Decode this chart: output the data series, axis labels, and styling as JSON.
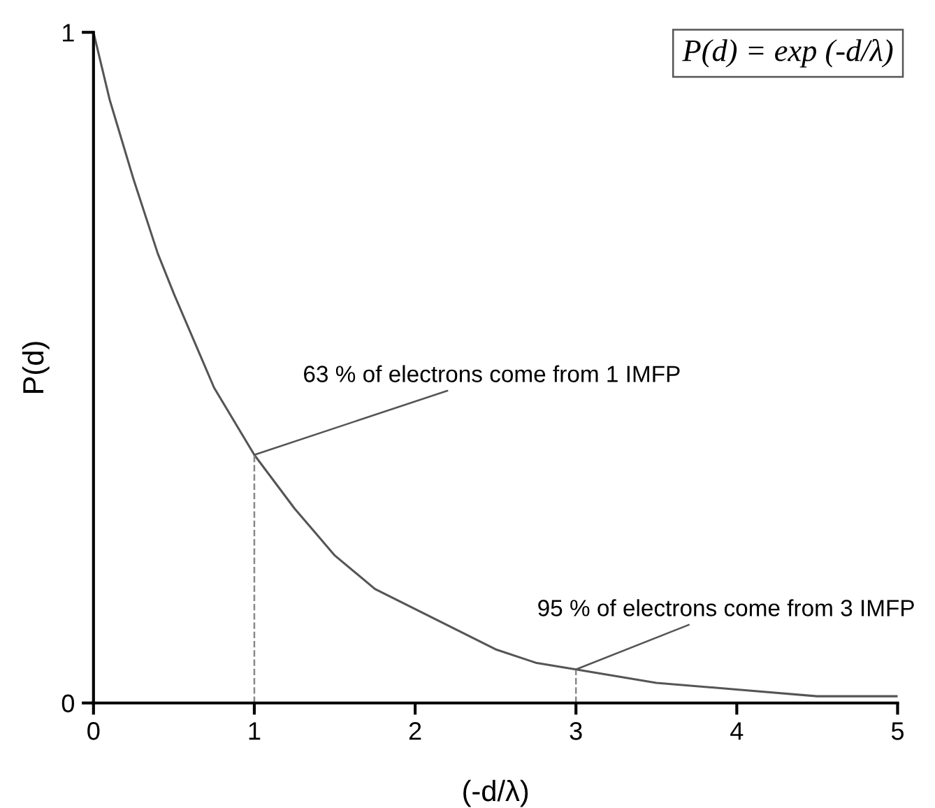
{
  "chart_data": {
    "type": "line",
    "xlabel": "(-d/λ)",
    "ylabel": "P(d)",
    "xlim": [
      0,
      5
    ],
    "ylim": [
      0,
      1
    ],
    "xticks": [
      0,
      1,
      2,
      3,
      4,
      5
    ],
    "yticks": [
      0,
      1
    ],
    "grid": false,
    "legend": false,
    "marker": "none",
    "series": [
      {
        "color": "#555555",
        "line_style": "solid",
        "x": [
          0,
          0.1,
          0.25,
          0.4,
          0.5,
          0.75,
          1,
          1.25,
          1.5,
          1.75,
          2,
          2.25,
          2.5,
          2.75,
          3,
          3.5,
          4,
          4.5,
          5
        ],
        "values": [
          1,
          0.9,
          0.78,
          0.67,
          0.61,
          0.47,
          0.37,
          0.29,
          0.22,
          0.17,
          0.14,
          0.11,
          0.08,
          0.06,
          0.05,
          0.03,
          0.02,
          0.01,
          0.01
        ]
      },
      {
        "color": "#888888",
        "line_style": "dashed",
        "x": [
          1,
          1
        ],
        "values": [
          0,
          0.37
        ]
      },
      {
        "color": "#888888",
        "line_style": "dashed",
        "x": [
          3,
          3
        ],
        "values": [
          0,
          0.05
        ]
      }
    ],
    "annotations": [
      {
        "text": "63 % of electrons come from 1 IMFP",
        "x": 1,
        "y": 0.37
      },
      {
        "text": "95 % of electrons come from 3 IMFP",
        "x": 3,
        "y": 0.05
      },
      "P(d) = exp (-d/λ)"
    ]
  }
}
